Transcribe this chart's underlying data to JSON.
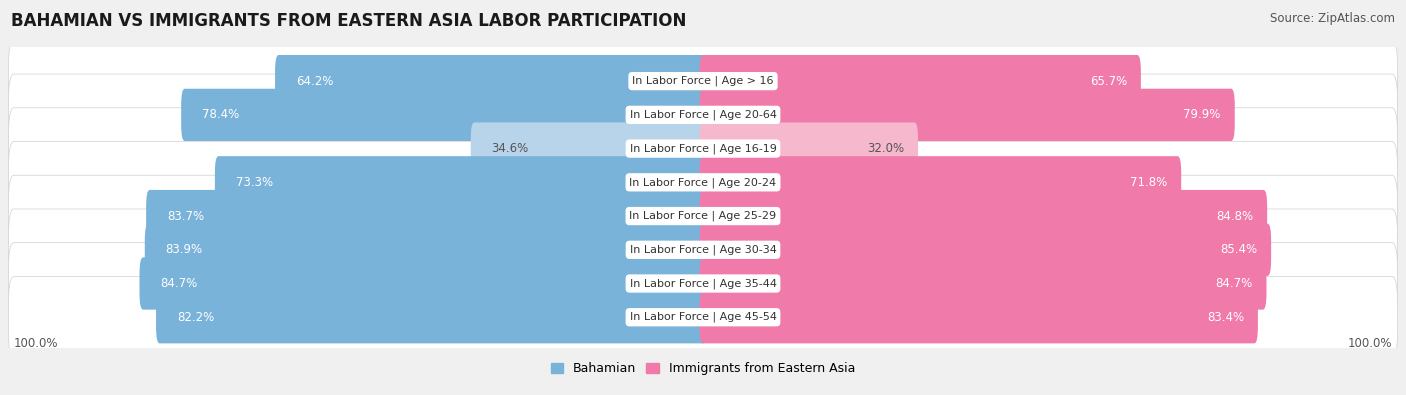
{
  "title": "BAHAMIAN VS IMMIGRANTS FROM EASTERN ASIA LABOR PARTICIPATION",
  "source": "Source: ZipAtlas.com",
  "categories": [
    "In Labor Force | Age > 16",
    "In Labor Force | Age 20-64",
    "In Labor Force | Age 16-19",
    "In Labor Force | Age 20-24",
    "In Labor Force | Age 25-29",
    "In Labor Force | Age 30-34",
    "In Labor Force | Age 35-44",
    "In Labor Force | Age 45-54"
  ],
  "bahamian": [
    64.2,
    78.4,
    34.6,
    73.3,
    83.7,
    83.9,
    84.7,
    82.2
  ],
  "immigrants": [
    65.7,
    79.9,
    32.0,
    71.8,
    84.8,
    85.4,
    84.7,
    83.4
  ],
  "bahamian_color": "#7ab3d9",
  "bahamian_color_light": "#b8d4ea",
  "immigrants_color": "#f07aaa",
  "immigrants_color_light": "#f5b8cc",
  "label_color_white": "#ffffff",
  "label_color_dark": "#555555",
  "bg_color": "#f0f0f0",
  "row_bg_color": "#e8e8e8",
  "bar_inner_bg": "#ffffff",
  "max_value": 100.0,
  "title_fontsize": 12,
  "source_fontsize": 8.5,
  "label_fontsize": 8.5,
  "category_fontsize": 8,
  "legend_fontsize": 9,
  "axis_label_fontsize": 8.5
}
